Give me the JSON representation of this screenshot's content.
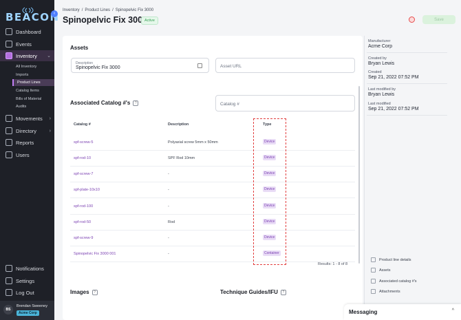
{
  "app": {
    "logo_text": "BEACON",
    "collapse_icon": "chevron-left-icon"
  },
  "sidebar": {
    "items": [
      {
        "label": "Dashboard",
        "icon": "grid-icon"
      },
      {
        "label": "Events",
        "icon": "calendar-icon"
      },
      {
        "label": "Inventory",
        "icon": "box-icon",
        "active": true
      },
      {
        "label": "Movements",
        "icon": "arrows-icon"
      },
      {
        "label": "Directory",
        "icon": "directory-icon"
      },
      {
        "label": "Reports",
        "icon": "chart-icon"
      },
      {
        "label": "Users",
        "icon": "users-icon"
      }
    ],
    "inventory_sub": [
      "All Inventory",
      "Imports",
      "Product Lines",
      "Catalog Items",
      "Bills of Material",
      "Audits"
    ],
    "bottom": [
      {
        "label": "Notifications",
        "icon": "bell-icon"
      },
      {
        "label": "Settings",
        "icon": "gear-icon"
      },
      {
        "label": "Log Out",
        "icon": "logout-icon"
      }
    ],
    "user": {
      "initials": "BS",
      "name": "Brendan Sweeney",
      "org": "Acme Corp"
    }
  },
  "breadcrumb": [
    "Inventory",
    "/",
    "Product Lines",
    "/",
    "Spinopelvic Fix 3000"
  ],
  "header": {
    "title": "Spinopelvic Fix 3000",
    "status": "Active",
    "save_label": "Save"
  },
  "assets": {
    "title": "Assets",
    "description_label": "Description",
    "description_value": "Spinopelvic Fix 3000",
    "asset_url_placeholder": "Asset URL"
  },
  "catalog": {
    "title": "Associated Catalog #'s",
    "help": "?",
    "search_placeholder": "Catalog #",
    "columns": [
      "Catalog #",
      "Description",
      "Type"
    ],
    "rows": [
      {
        "catalog": "spf-screw-5",
        "description": "Polyaxial screw 5mm x 50mm",
        "type": "Device"
      },
      {
        "catalog": "spf-rod-10",
        "description": "SPF Rod 10mm",
        "type": "Device"
      },
      {
        "catalog": "spf-screw-7",
        "description": "-",
        "type": "Device"
      },
      {
        "catalog": "spf-plate-10x10",
        "description": "-",
        "type": "Device"
      },
      {
        "catalog": "spf-rod-100",
        "description": "-",
        "type": "Device"
      },
      {
        "catalog": "spf-rod-50",
        "description": "Rod",
        "type": "Device"
      },
      {
        "catalog": "spf-screw-9",
        "description": "-",
        "type": "Device"
      },
      {
        "catalog": "Spinopelvic Fix 3000 001",
        "description": "-",
        "type": "Container"
      }
    ],
    "results": "Results: 1 - 8 of 8"
  },
  "images": {
    "title": "Images",
    "help": "?"
  },
  "guides": {
    "title": "Technique Guides/IFU",
    "help": "?"
  },
  "meta": [
    {
      "label": "Manufacturer",
      "value": "Acme Corp"
    },
    {
      "label": "Created by",
      "value": "Bryan Lewis"
    },
    {
      "label": "Created",
      "value": "Sep 21, 2022 07:52 PM"
    },
    {
      "label": "Last modified by",
      "value": "Bryan Lewis"
    },
    {
      "label": "Last modified",
      "value": "Sep 21, 2022 07:52 PM"
    }
  ],
  "toc": [
    "Product line details",
    "Assets",
    "Associated catalog #'s",
    "Attachments"
  ],
  "messaging": {
    "label": "Messaging",
    "chevron": "^"
  },
  "colors": {
    "accent": "#7a3fb1",
    "sidebar": "#1e2027",
    "highlight": "#e23d3d"
  }
}
